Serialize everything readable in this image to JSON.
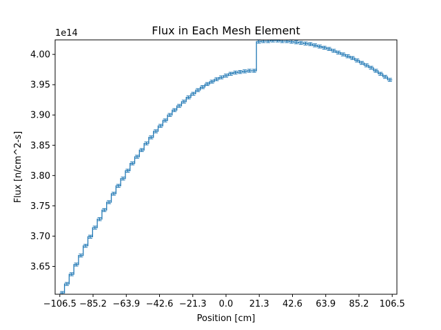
{
  "chart_data": {
    "type": "line",
    "style": "step-with-errorbars",
    "title": "Flux in Each Mesh Element",
    "xlabel": "Position [cm]",
    "ylabel": "Flux [n/cm^2-s]",
    "y_multiplier_label": "1e14",
    "y_scale": 100000000000000.0,
    "xlim": [
      -109.5,
      109.5
    ],
    "ylim": [
      3.604,
      4.024
    ],
    "xticks": [
      {
        "value": -106.5,
        "label": "−106.5"
      },
      {
        "value": -85.2,
        "label": "−85.2"
      },
      {
        "value": -63.9,
        "label": "−63.9"
      },
      {
        "value": -42.6,
        "label": "−42.6"
      },
      {
        "value": -21.3,
        "label": "−21.3"
      },
      {
        "value": 0.0,
        "label": "0.0"
      },
      {
        "value": 21.3,
        "label": "21.3"
      },
      {
        "value": 42.6,
        "label": "42.6"
      },
      {
        "value": 63.9,
        "label": "63.9"
      },
      {
        "value": 85.2,
        "label": "85.2"
      },
      {
        "value": 106.5,
        "label": "106.5"
      }
    ],
    "yticks": [
      {
        "value": 3.65,
        "label": "3.65"
      },
      {
        "value": 3.7,
        "label": "3.70"
      },
      {
        "value": 3.75,
        "label": "3.75"
      },
      {
        "value": 3.8,
        "label": "3.80"
      },
      {
        "value": 3.85,
        "label": "3.85"
      },
      {
        "value": 3.9,
        "label": "3.90"
      },
      {
        "value": 3.95,
        "label": "3.95"
      },
      {
        "value": 4.0,
        "label": "4.00"
      }
    ],
    "series": [
      {
        "color": "#1f77b4",
        "bin_edges": [
          -106.5,
          -103.5,
          -100.5,
          -97.5,
          -94.5,
          -91.5,
          -88.5,
          -85.5,
          -82.5,
          -79.5,
          -76.5,
          -73.5,
          -70.5,
          -67.5,
          -64.5,
          -61.5,
          -58.5,
          -55.5,
          -52.5,
          -49.5,
          -46.5,
          -43.5,
          -40.5,
          -37.5,
          -34.5,
          -31.5,
          -28.5,
          -25.5,
          -22.5,
          -19.5,
          -16.5,
          -13.5,
          -10.5,
          -7.5,
          -4.5,
          -1.5,
          1.5,
          4.5,
          7.5,
          10.5,
          13.5,
          16.5,
          19.5,
          22.5,
          25.5,
          28.5,
          31.5,
          34.5,
          37.5,
          40.5,
          43.5,
          46.5,
          49.5,
          52.5,
          55.5,
          58.5,
          61.5,
          64.5,
          67.5,
          70.5,
          73.5,
          76.5,
          79.5,
          82.5,
          85.5,
          88.5,
          91.5,
          94.5,
          97.5,
          100.5,
          103.5,
          106.5
        ],
        "x": [
          -105.0,
          -102.0,
          -99.0,
          -96.0,
          -93.0,
          -90.0,
          -87.0,
          -84.0,
          -81.0,
          -78.0,
          -75.0,
          -72.0,
          -69.0,
          -66.0,
          -63.0,
          -60.0,
          -57.0,
          -54.0,
          -51.0,
          -48.0,
          -45.0,
          -42.0,
          -39.0,
          -36.0,
          -33.0,
          -30.0,
          -27.0,
          -24.0,
          -21.0,
          -18.0,
          -15.0,
          -12.0,
          -9.0,
          -6.0,
          -3.0,
          0.0,
          3.0,
          6.0,
          9.0,
          12.0,
          15.0,
          18.0,
          21.0,
          24.0,
          27.0,
          30.0,
          33.0,
          36.0,
          39.0,
          42.0,
          45.0,
          48.0,
          51.0,
          54.0,
          57.0,
          60.0,
          63.0,
          66.0,
          69.0,
          72.0,
          75.0,
          78.0,
          81.0,
          84.0,
          87.0,
          90.0,
          93.0,
          96.0,
          99.0,
          102.0,
          105.0
        ],
        "values": [
          3.606,
          3.621,
          3.637,
          3.653,
          3.668,
          3.684,
          3.699,
          3.714,
          3.728,
          3.743,
          3.756,
          3.77,
          3.783,
          3.795,
          3.808,
          3.82,
          3.831,
          3.842,
          3.853,
          3.863,
          3.873,
          3.882,
          3.891,
          3.9,
          3.908,
          3.915,
          3.922,
          3.929,
          3.935,
          3.941,
          3.946,
          3.951,
          3.955,
          3.959,
          3.962,
          3.965,
          3.968,
          3.97,
          3.971,
          3.972,
          3.973,
          3.973,
          4.021,
          4.022,
          4.022,
          4.023,
          4.023,
          4.022,
          4.022,
          4.021,
          4.02,
          4.019,
          4.018,
          4.017,
          4.015,
          4.013,
          4.011,
          4.009,
          4.006,
          4.003,
          4.0,
          3.997,
          3.994,
          3.99,
          3.986,
          3.982,
          3.978,
          3.973,
          3.968,
          3.963,
          3.958
        ],
        "errors": [
          0.0025,
          0.0025,
          0.0025,
          0.0025,
          0.0025,
          0.0025,
          0.0025,
          0.0025,
          0.0025,
          0.0025,
          0.0025,
          0.0025,
          0.0025,
          0.0025,
          0.0025,
          0.0025,
          0.0025,
          0.0025,
          0.0025,
          0.0025,
          0.0025,
          0.0025,
          0.0025,
          0.0025,
          0.0025,
          0.0025,
          0.0025,
          0.0025,
          0.0025,
          0.0025,
          0.0025,
          0.0025,
          0.0025,
          0.0025,
          0.0025,
          0.0025,
          0.0025,
          0.0025,
          0.0025,
          0.0025,
          0.0025,
          0.0025,
          0.0025,
          0.0025,
          0.0025,
          0.0025,
          0.0025,
          0.0025,
          0.0025,
          0.0025,
          0.0025,
          0.0025,
          0.0025,
          0.0025,
          0.0025,
          0.0025,
          0.0025,
          0.0025,
          0.0025,
          0.0025,
          0.0025,
          0.0025,
          0.0025,
          0.0025,
          0.0025,
          0.0025,
          0.0025,
          0.0025,
          0.0025,
          0.0025,
          0.0025
        ]
      }
    ],
    "grid": false,
    "legend": "none"
  }
}
